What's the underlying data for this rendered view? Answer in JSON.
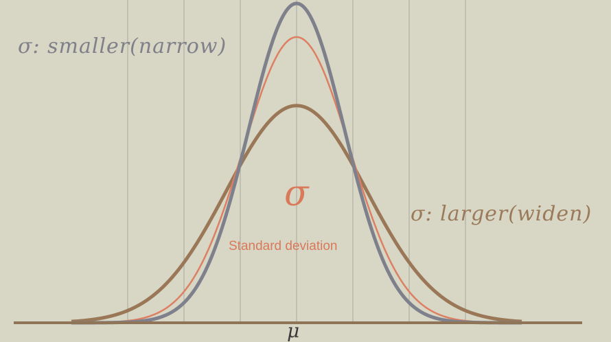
{
  "labels": {
    "narrow": "σ: smaller(narrow)",
    "wide": "σ: larger(widen)",
    "sigma_symbol": "σ",
    "sigma_caption": "Standard deviation",
    "mean_symbol": "μ"
  },
  "colors": {
    "background": "#d8d6c4",
    "gridline": "#a9a89b",
    "axis": "#8f7458",
    "narrow_curve": "#7e808c",
    "medium_curve": "#dd7f62",
    "wide_curve": "#9a7857"
  },
  "chart_data": {
    "type": "line",
    "x_range": [
      -4,
      4
    ],
    "grid_x": [
      -3,
      -2,
      -1,
      0,
      1,
      2,
      3
    ],
    "series": [
      {
        "key": "narrow",
        "mu": 0,
        "sigma": 0.85
      },
      {
        "key": "medium",
        "mu": 0,
        "sigma": 0.95
      },
      {
        "key": "wide",
        "mu": 0,
        "sigma": 1.25
      }
    ]
  }
}
